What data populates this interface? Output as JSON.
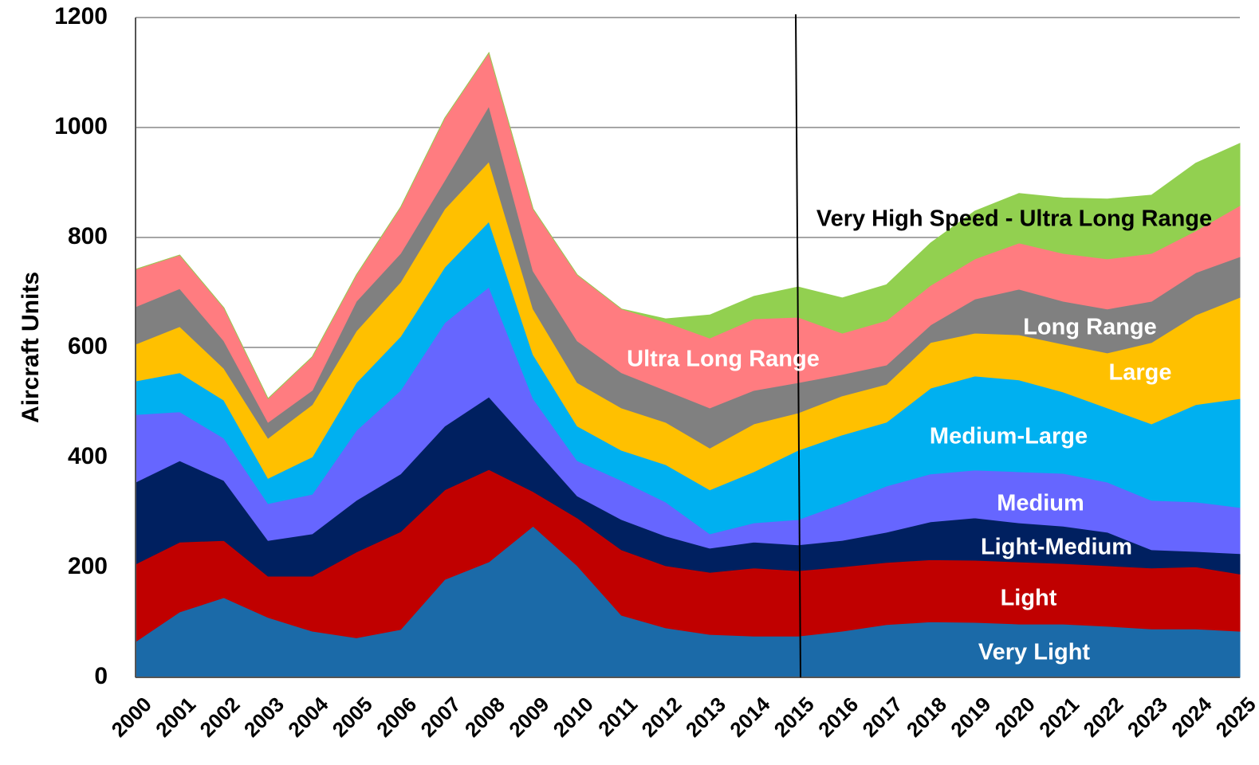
{
  "chart_data": {
    "type": "stacked_area",
    "y_label": "Aircraft Units",
    "categories": [
      "2000",
      "2001",
      "2002",
      "2003",
      "2004",
      "2005",
      "2006",
      "2007",
      "2008",
      "2009",
      "2010",
      "2011",
      "2012",
      "2013",
      "2014",
      "2015",
      "2016",
      "2017",
      "2018",
      "2019",
      "2020",
      "2021",
      "2022",
      "2023",
      "2024",
      "2025"
    ],
    "ylim": [
      0,
      1200
    ],
    "yticks": [
      0,
      200,
      400,
      600,
      800,
      1000,
      1200
    ],
    "grid": true,
    "divider": "2015",
    "series": [
      {
        "name": "Very Light",
        "color": "#1b6aa8",
        "label_color": "#ffffff",
        "values": [
          65,
          119,
          145,
          109,
          84,
          72,
          87,
          178,
          210,
          275,
          203,
          113,
          90,
          78,
          75,
          75,
          84,
          96,
          101,
          100,
          97,
          97,
          93,
          88,
          88,
          84
        ]
      },
      {
        "name": "Light",
        "color": "#c00000",
        "label_color": "#ffffff",
        "values": [
          141,
          127,
          104,
          75,
          100,
          156,
          178,
          163,
          168,
          63,
          87,
          119,
          113,
          113,
          124,
          119,
          117,
          113,
          113,
          113,
          113,
          110,
          110,
          111,
          113,
          104
        ]
      },
      {
        "name": "Light-Medium",
        "color": "#002060",
        "label_color": "#ffffff",
        "values": [
          149,
          148,
          109,
          65,
          77,
          94,
          105,
          116,
          132,
          82,
          40,
          55,
          54,
          44,
          47,
          47,
          48,
          55,
          69,
          77,
          71,
          68,
          61,
          33,
          28,
          37
        ]
      },
      {
        "name": "Medium",
        "color": "#6666ff",
        "label_color": "#ffffff",
        "values": [
          123,
          89,
          77,
          67,
          72,
          127,
          152,
          188,
          200,
          87,
          64,
          71,
          62,
          26,
          35,
          46,
          67,
          84,
          87,
          87,
          93,
          96,
          91,
          90,
          90,
          84
        ]
      },
      {
        "name": "Medium-Large",
        "color": "#00b0f0",
        "label_color": "#ffffff",
        "values": [
          61,
          71,
          69,
          46,
          68,
          87,
          98,
          101,
          119,
          80,
          63,
          55,
          68,
          80,
          93,
          126,
          125,
          116,
          156,
          171,
          167,
          148,
          135,
          139,
          177,
          198
        ]
      },
      {
        "name": "Large",
        "color": "#ffc000",
        "label_color": "#ffffff",
        "values": [
          67,
          84,
          58,
          73,
          95,
          94,
          99,
          106,
          109,
          83,
          79,
          77,
          77,
          76,
          87,
          68,
          71,
          69,
          83,
          78,
          82,
          87,
          100,
          148,
          163,
          184
        ]
      },
      {
        "name": "Long Range",
        "color": "#808080",
        "label_color": "#ffffff",
        "values": [
          68,
          69,
          50,
          29,
          26,
          54,
          52,
          52,
          101,
          69,
          76,
          64,
          58,
          73,
          61,
          55,
          39,
          35,
          32,
          62,
          83,
          78,
          80,
          75,
          77,
          74
        ]
      },
      {
        "name": "Ultra Long Range",
        "color": "#ff7c80",
        "label_color": "#ffffff",
        "values": [
          68,
          61,
          60,
          43,
          61,
          48,
          84,
          113,
          97,
          113,
          120,
          116,
          124,
          127,
          130,
          119,
          75,
          81,
          72,
          73,
          84,
          87,
          91,
          87,
          76,
          93
        ]
      },
      {
        "name": "Very High Speed - Ultra Long Range",
        "color": "#92d050",
        "label_color": "#000000",
        "values": [
          0,
          0,
          0,
          0,
          0,
          0,
          0,
          0,
          0,
          0,
          0,
          0,
          6,
          42,
          41,
          55,
          64,
          65,
          77,
          87,
          90,
          101,
          109,
          106,
          123,
          113
        ]
      }
    ]
  }
}
